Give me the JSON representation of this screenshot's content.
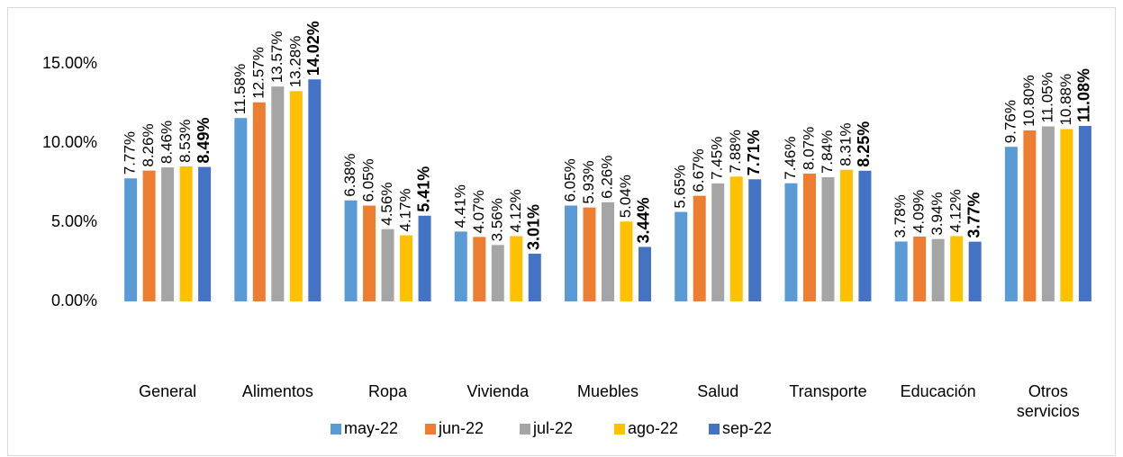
{
  "chart_data": {
    "type": "bar",
    "categories": [
      "General",
      "Alimentos",
      "Ropa",
      "Vivienda",
      "Muebles",
      "Salud",
      "Transporte",
      "Educación",
      "Otros servicios"
    ],
    "series": [
      {
        "name": "may-22",
        "color": "#5b9bd5",
        "values": [
          7.77,
          11.58,
          6.38,
          4.41,
          6.05,
          5.65,
          7.46,
          3.78,
          9.76
        ],
        "value_labels": [
          "7.77%",
          "11.58%",
          "6.38%",
          "4.41%",
          "6.05%",
          "5.65%",
          "7.46%",
          "3.78%",
          "9.76%"
        ]
      },
      {
        "name": "jun-22",
        "color": "#ed7d31",
        "values": [
          8.26,
          12.57,
          6.05,
          4.07,
          5.93,
          6.67,
          8.07,
          4.09,
          10.8
        ],
        "value_labels": [
          "8.26%",
          "12.57%",
          "6.05%",
          "4.07%",
          "5.93%",
          "6.67%",
          "8.07%",
          "4.09%",
          "10.80%"
        ]
      },
      {
        "name": "jul-22",
        "color": "#a5a5a5",
        "values": [
          8.46,
          13.57,
          4.56,
          3.56,
          6.26,
          7.45,
          7.84,
          3.94,
          11.05
        ],
        "value_labels": [
          "8.46%",
          "13.57%",
          "4.56%",
          "3.56%",
          "6.26%",
          "7.45%",
          "7.84%",
          "3.94%",
          "11.05%"
        ]
      },
      {
        "name": "ago-22",
        "color": "#ffc000",
        "values": [
          8.53,
          13.28,
          4.17,
          4.12,
          5.04,
          7.88,
          8.31,
          4.12,
          10.88
        ],
        "value_labels": [
          "8.53%",
          "13.28%",
          "4.17%",
          "4.12%",
          "5.04%",
          "7.88%",
          "8.31%",
          "4.12%",
          "10.88%"
        ]
      },
      {
        "name": "sep-22",
        "color": "#4472c4",
        "values": [
          8.49,
          14.02,
          5.41,
          3.01,
          3.44,
          7.71,
          8.25,
          3.77,
          11.08
        ],
        "value_labels": [
          "8.49%",
          "14.02%",
          "5.41%",
          "3.01%",
          "3.44%",
          "7.71%",
          "8.25%",
          "3.77%",
          "11.08%"
        ]
      }
    ],
    "ylim": [
      0,
      17.5
    ],
    "yticks": [
      {
        "value": 0,
        "label": "0.00%"
      },
      {
        "value": 5,
        "label": "5.00%"
      },
      {
        "value": 10,
        "label": "10.00%"
      },
      {
        "value": 15,
        "label": "15.00%"
      }
    ],
    "grid": false,
    "legend": "bottom"
  }
}
